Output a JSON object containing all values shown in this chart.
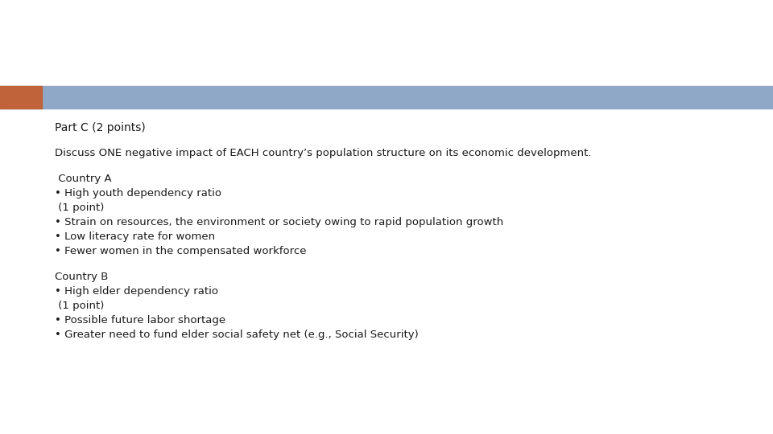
{
  "bg_color": "#ffffff",
  "header_bar_color": "#8fa8c8",
  "orange_bar_color": "#c0623a",
  "title": "Part C (2 points)",
  "subtitle": "Discuss ONE negative impact of EACH country’s population structure on its economic development.",
  "country_a_header": " Country A",
  "country_a_lines": [
    "• High youth dependency ratio",
    " (1 point)",
    "• Strain on resources, the environment or society owing to rapid population growth",
    "• Low literacy rate for women",
    "• Fewer women in the compensated workforce"
  ],
  "country_b_header": "Country B",
  "country_b_lines": [
    "• High elder dependency ratio",
    " (1 point)",
    "• Possible future labor shortage",
    "• Greater need to fund elder social safety net (e.g., Social Security)"
  ],
  "font_size_title": 10,
  "font_size_body": 9.5,
  "text_color": "#1a1a1a",
  "font_family": "DejaVu Sans"
}
